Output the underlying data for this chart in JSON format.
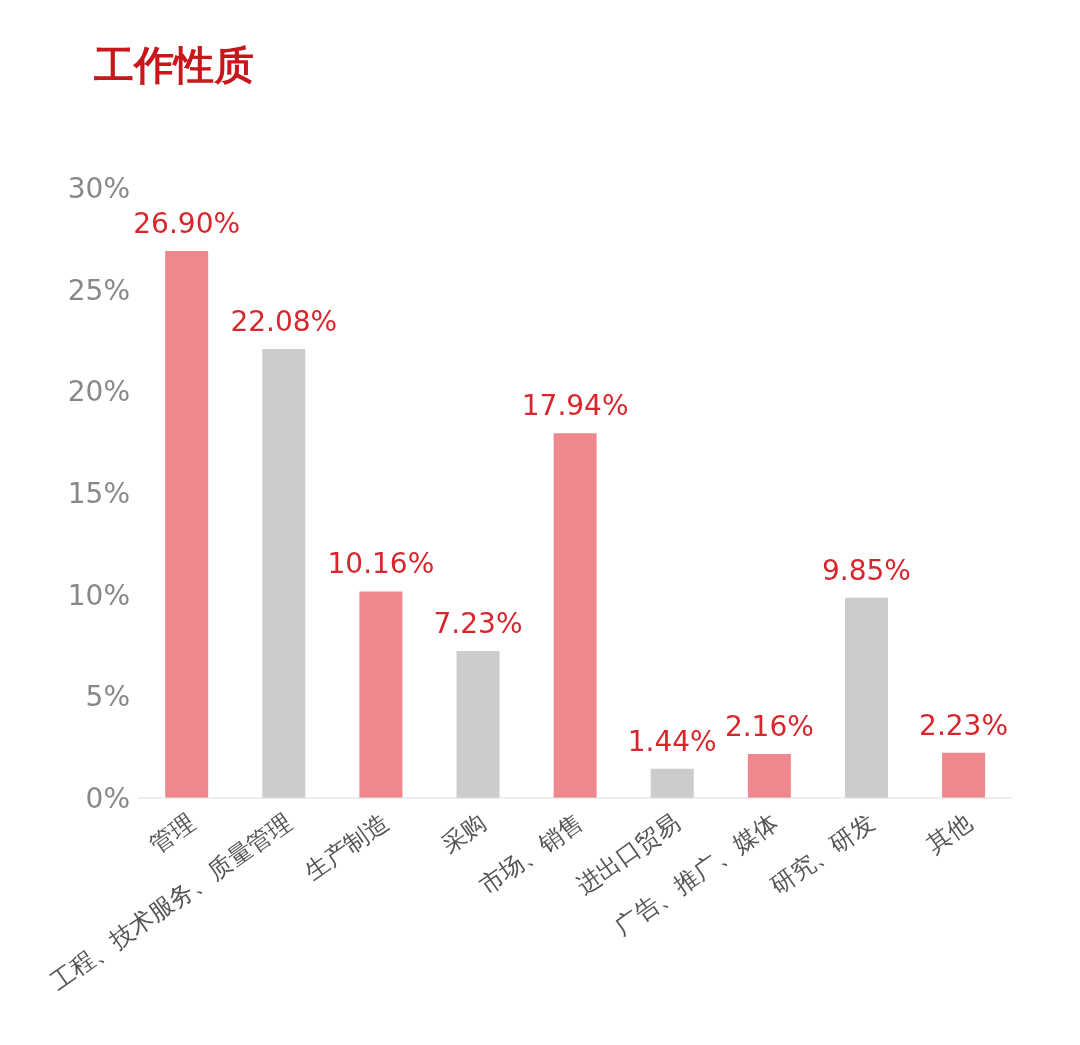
{
  "chart_data": {
    "type": "bar",
    "title": "工作性质",
    "categories": [
      "管理",
      "工程、技术服务、质量管理",
      "生产制造",
      "采购",
      "市场、销售",
      "进出口贸易",
      "广告、推广、媒体",
      "研究、研发",
      "其他"
    ],
    "values": [
      26.9,
      22.08,
      10.16,
      7.23,
      17.94,
      1.44,
      2.16,
      9.85,
      2.23
    ],
    "colors": [
      "#f0878e",
      "#cccccc",
      "#f0878e",
      "#cccccc",
      "#f0878e",
      "#cccccc",
      "#f0878e",
      "#cccccc",
      "#f0878e"
    ],
    "value_labels": [
      "26.90%",
      "22.08%",
      "10.16%",
      "7.23%",
      "17.94%",
      "1.44%",
      "2.16%",
      "9.85%",
      "2.23%"
    ],
    "ylim": [
      0,
      30
    ],
    "yticks": [
      {
        "value": 0,
        "label": "0%"
      },
      {
        "value": 5,
        "label": "5%"
      },
      {
        "value": 10,
        "label": "10%"
      },
      {
        "value": 15,
        "label": "15%"
      },
      {
        "value": 20,
        "label": "20%"
      },
      {
        "value": 25,
        "label": "25%"
      },
      {
        "value": 30,
        "label": "30%"
      }
    ],
    "grid": false
  }
}
